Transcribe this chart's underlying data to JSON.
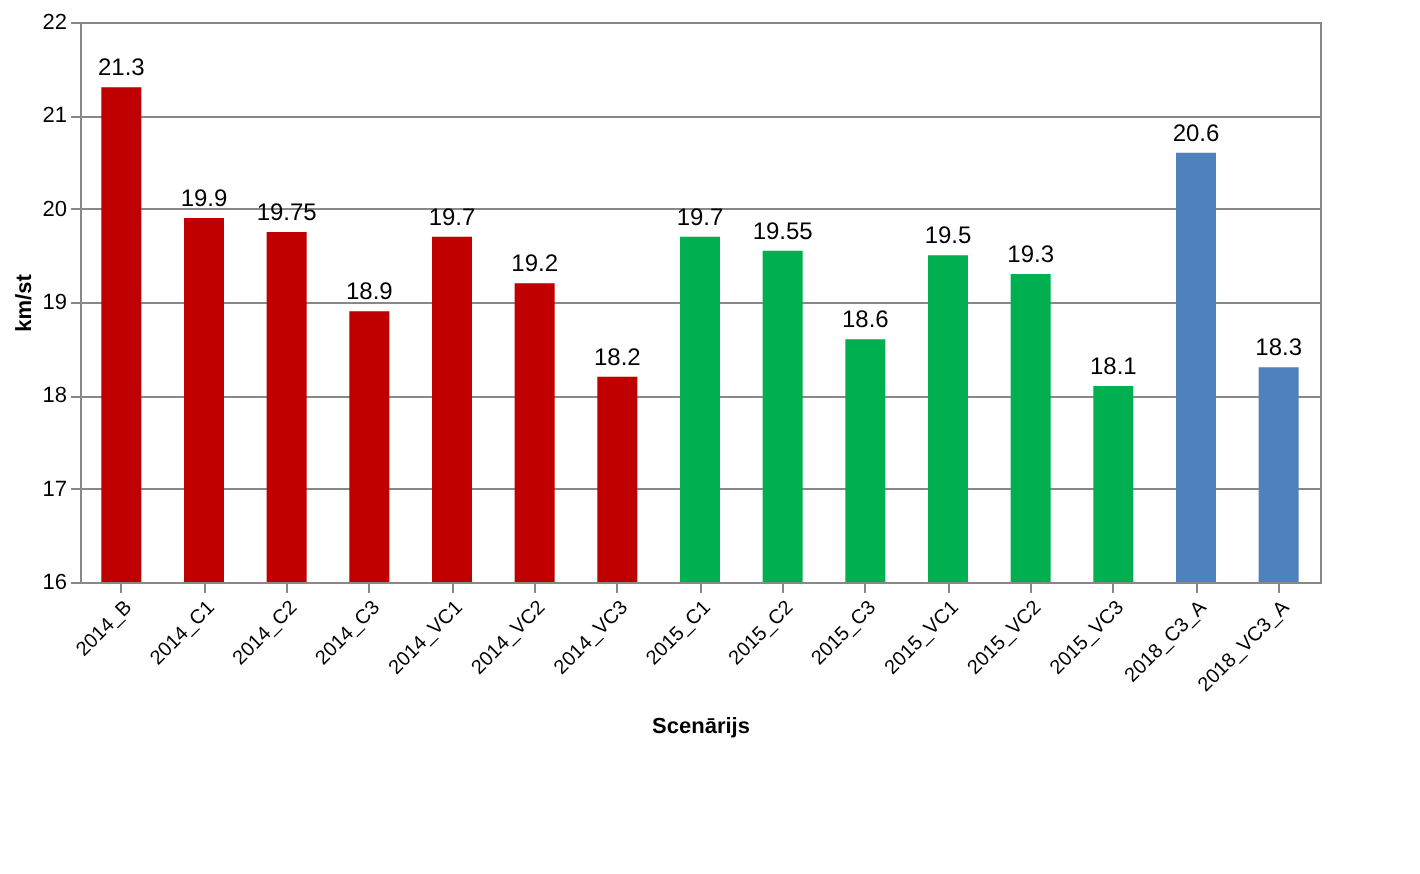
{
  "chart_data": {
    "type": "bar",
    "xlabel": "Scenārijs",
    "ylabel": "km/st",
    "categories": [
      "2014_B",
      "2014_C1",
      "2014_C2",
      "2014_C3",
      "2014_VC1",
      "2014_VC2",
      "2014_VC3",
      "2015_C1",
      "2015_C2",
      "2015_C3",
      "2015_VC1",
      "2015_VC2",
      "2015_VC3",
      "2018_C3_A",
      "2018_VC3_A"
    ],
    "values": [
      21.3,
      19.9,
      19.75,
      18.9,
      19.7,
      19.2,
      18.2,
      19.7,
      19.55,
      18.6,
      19.5,
      19.3,
      18.1,
      20.6,
      18.3
    ],
    "colors": [
      "#c00000",
      "#c00000",
      "#c00000",
      "#c00000",
      "#c00000",
      "#c00000",
      "#c00000",
      "#00b050",
      "#00b050",
      "#00b050",
      "#00b050",
      "#00b050",
      "#00b050",
      "#4f81bd",
      "#4f81bd"
    ],
    "ylim": [
      16,
      22
    ],
    "yticks": [
      16,
      17,
      18,
      19,
      20,
      21,
      22
    ],
    "grid": "y",
    "data_labels": true
  }
}
